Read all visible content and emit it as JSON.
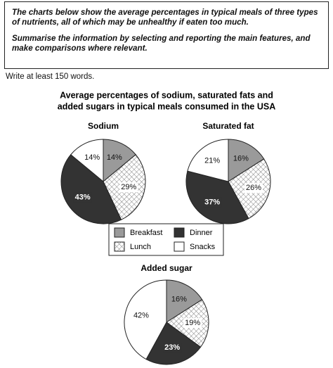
{
  "prompt": [
    "The charts below show the average percentages in typical meals of three types of nutrients, all of which may be unhealthy if eaten too much.",
    "Summarise the information by selecting and reporting the main features, and make comparisons where relevant."
  ],
  "instruction": "Write at least 150 words.",
  "figure_title": [
    "Average percentages of sodium, saturated fats and",
    "added sugars in typical meals consumed in the USA"
  ],
  "chart_data": [
    {
      "type": "pie",
      "title": "Sodium",
      "categories": [
        "Breakfast",
        "Lunch",
        "Dinner",
        "Snacks"
      ],
      "values": [
        14,
        29,
        43,
        14
      ],
      "value_labels": [
        "14%",
        "29%",
        "43%",
        "14%"
      ],
      "colors": [
        "#9a9a9a",
        "crosshatch",
        "#333333",
        "#ffffff"
      ]
    },
    {
      "type": "pie",
      "title": "Saturated fat",
      "categories": [
        "Breakfast",
        "Lunch",
        "Dinner",
        "Snacks"
      ],
      "values": [
        16,
        26,
        37,
        21
      ],
      "value_labels": [
        "16%",
        "26%",
        "37%",
        "21%"
      ],
      "colors": [
        "#9a9a9a",
        "crosshatch",
        "#333333",
        "#ffffff"
      ]
    },
    {
      "type": "pie",
      "title": "Added sugar",
      "categories": [
        "Breakfast",
        "Lunch",
        "Dinner",
        "Snacks"
      ],
      "values": [
        16,
        19,
        23,
        42
      ],
      "value_labels": [
        "16%",
        "19%",
        "23%",
        "42%"
      ],
      "colors": [
        "#9a9a9a",
        "crosshatch",
        "#333333",
        "#ffffff"
      ]
    }
  ]
}
